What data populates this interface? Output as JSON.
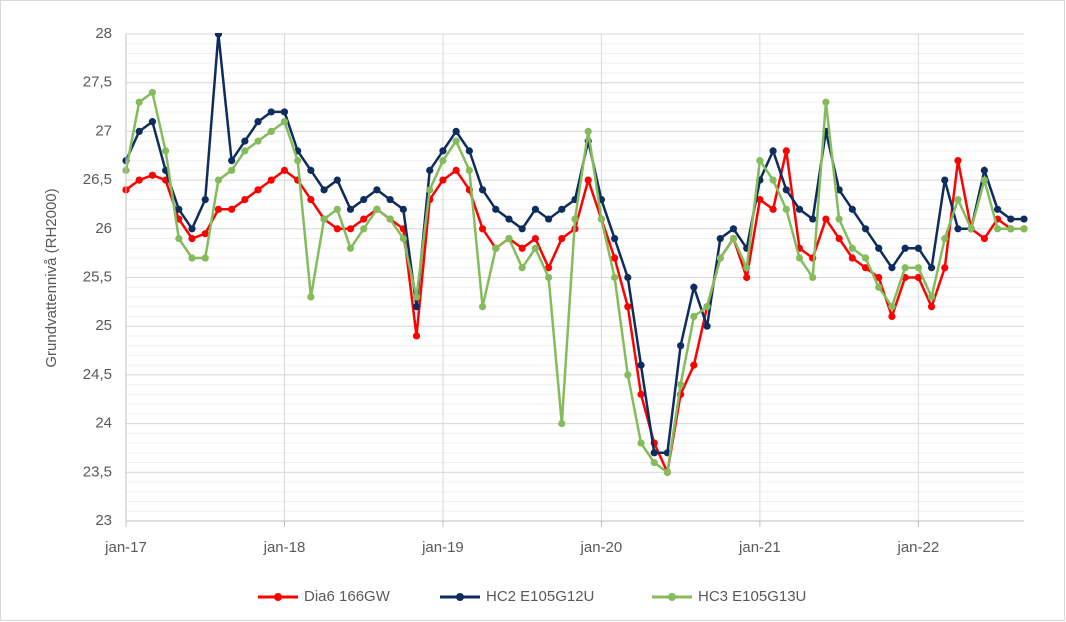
{
  "chart_data": {
    "type": "line",
    "y_label": "Grundvattennivå (RH2000)",
    "x": [
      "2017-01",
      "2017-02",
      "2017-03",
      "2017-04",
      "2017-05",
      "2017-06",
      "2017-07",
      "2017-08",
      "2017-09",
      "2017-10",
      "2017-11",
      "2017-12",
      "2018-01",
      "2018-02",
      "2018-03",
      "2018-04",
      "2018-05",
      "2018-06",
      "2018-07",
      "2018-08",
      "2018-09",
      "2018-10",
      "2018-11",
      "2018-12",
      "2019-01",
      "2019-02",
      "2019-03",
      "2019-04",
      "2019-05",
      "2019-06",
      "2019-07",
      "2019-08",
      "2019-09",
      "2019-10",
      "2019-11",
      "2019-12",
      "2020-01",
      "2020-02",
      "2020-03",
      "2020-04",
      "2020-05",
      "2020-06",
      "2020-07",
      "2020-08",
      "2020-09",
      "2020-10",
      "2020-11",
      "2020-12",
      "2021-01",
      "2021-02",
      "2021-03",
      "2021-04",
      "2021-05",
      "2021-06",
      "2021-07",
      "2021-08",
      "2021-09",
      "2021-10",
      "2021-11",
      "2021-12",
      "2022-01",
      "2022-02",
      "2022-03",
      "2022-04",
      "2022-05",
      "2022-06",
      "2022-07",
      "2022-08",
      "2022-09"
    ],
    "series": [
      {
        "name": "Dia6 166GW",
        "color": "#ff0000",
        "values": [
          26.4,
          26.5,
          26.55,
          26.5,
          26.1,
          25.9,
          25.95,
          26.2,
          26.2,
          26.3,
          26.4,
          26.5,
          26.6,
          26.5,
          26.3,
          26.1,
          26.0,
          26.0,
          26.1,
          26.2,
          26.1,
          26.0,
          24.9,
          26.3,
          26.5,
          26.6,
          26.4,
          26.0,
          25.8,
          25.9,
          25.8,
          25.9,
          25.6,
          25.9,
          26.0,
          26.5,
          26.1,
          25.7,
          25.2,
          24.3,
          23.8,
          23.5,
          24.3,
          24.6,
          25.2,
          25.7,
          25.9,
          25.5,
          26.3,
          26.2,
          26.8,
          25.8,
          25.7,
          26.1,
          25.9,
          25.7,
          25.6,
          25.5,
          25.1,
          25.5,
          25.5,
          25.2,
          25.6,
          26.7,
          26.0,
          25.9,
          26.1,
          26.0,
          26.0
        ]
      },
      {
        "name": "HC2 E105G12U",
        "color": "#0e2d5e",
        "values": [
          26.7,
          27.0,
          27.1,
          26.6,
          26.2,
          26.0,
          26.3,
          28.0,
          26.7,
          26.9,
          27.1,
          27.2,
          27.2,
          26.8,
          26.6,
          26.4,
          26.5,
          26.2,
          26.3,
          26.4,
          26.3,
          26.2,
          25.2,
          26.6,
          26.8,
          27.0,
          26.8,
          26.4,
          26.2,
          26.1,
          26.0,
          26.2,
          26.1,
          26.2,
          26.3,
          26.9,
          26.3,
          25.9,
          25.5,
          24.6,
          23.7,
          23.7,
          24.8,
          25.4,
          25.0,
          25.9,
          26.0,
          25.8,
          26.5,
          26.8,
          26.4,
          26.2,
          26.1,
          27.0,
          26.4,
          26.2,
          26.0,
          25.8,
          25.6,
          25.8,
          25.8,
          25.6,
          26.5,
          26.0,
          26.0,
          26.6,
          26.2,
          26.1,
          26.1
        ]
      },
      {
        "name": "HC3 E105G13U",
        "color": "#84bc5c",
        "values": [
          26.6,
          27.3,
          27.4,
          26.8,
          25.9,
          25.7,
          25.7,
          26.5,
          26.6,
          26.8,
          26.9,
          27.0,
          27.1,
          26.7,
          25.3,
          26.1,
          26.2,
          25.8,
          26.0,
          26.2,
          26.1,
          25.9,
          25.3,
          26.4,
          26.7,
          26.9,
          26.6,
          25.2,
          25.8,
          25.9,
          25.6,
          25.8,
          25.5,
          24.0,
          26.1,
          27.0,
          26.1,
          25.5,
          24.5,
          23.8,
          23.6,
          23.5,
          24.4,
          25.1,
          25.2,
          25.7,
          25.9,
          25.6,
          26.7,
          26.5,
          26.2,
          25.7,
          25.5,
          27.3,
          26.1,
          25.8,
          25.7,
          25.4,
          25.2,
          25.6,
          25.6,
          25.3,
          25.9,
          26.3,
          26.0,
          26.5,
          26.0,
          26.0,
          26.0
        ]
      }
    ],
    "xlim": [
      "2017-01",
      "2022-09"
    ],
    "xticks": [
      {
        "value": "2017-01",
        "label": "jan-17"
      },
      {
        "value": "2018-01",
        "label": "jan-18"
      },
      {
        "value": "2019-01",
        "label": "jan-19"
      },
      {
        "value": "2020-01",
        "label": "jan-20"
      },
      {
        "value": "2021-01",
        "label": "jan-21"
      },
      {
        "value": "2022-01",
        "label": "jan-22"
      }
    ],
    "ylim": [
      23,
      28
    ],
    "yticks": [
      23,
      {
        "value": 23.5,
        "label": "23,5"
      },
      24,
      {
        "value": 24.5,
        "label": "24,5"
      },
      25,
      {
        "value": 25.5,
        "label": "25,5"
      },
      26,
      {
        "value": 26.5,
        "label": "26,5"
      },
      27,
      {
        "value": 27.5,
        "label": "27,5"
      },
      28
    ],
    "grid": true,
    "legend": "bottom"
  }
}
